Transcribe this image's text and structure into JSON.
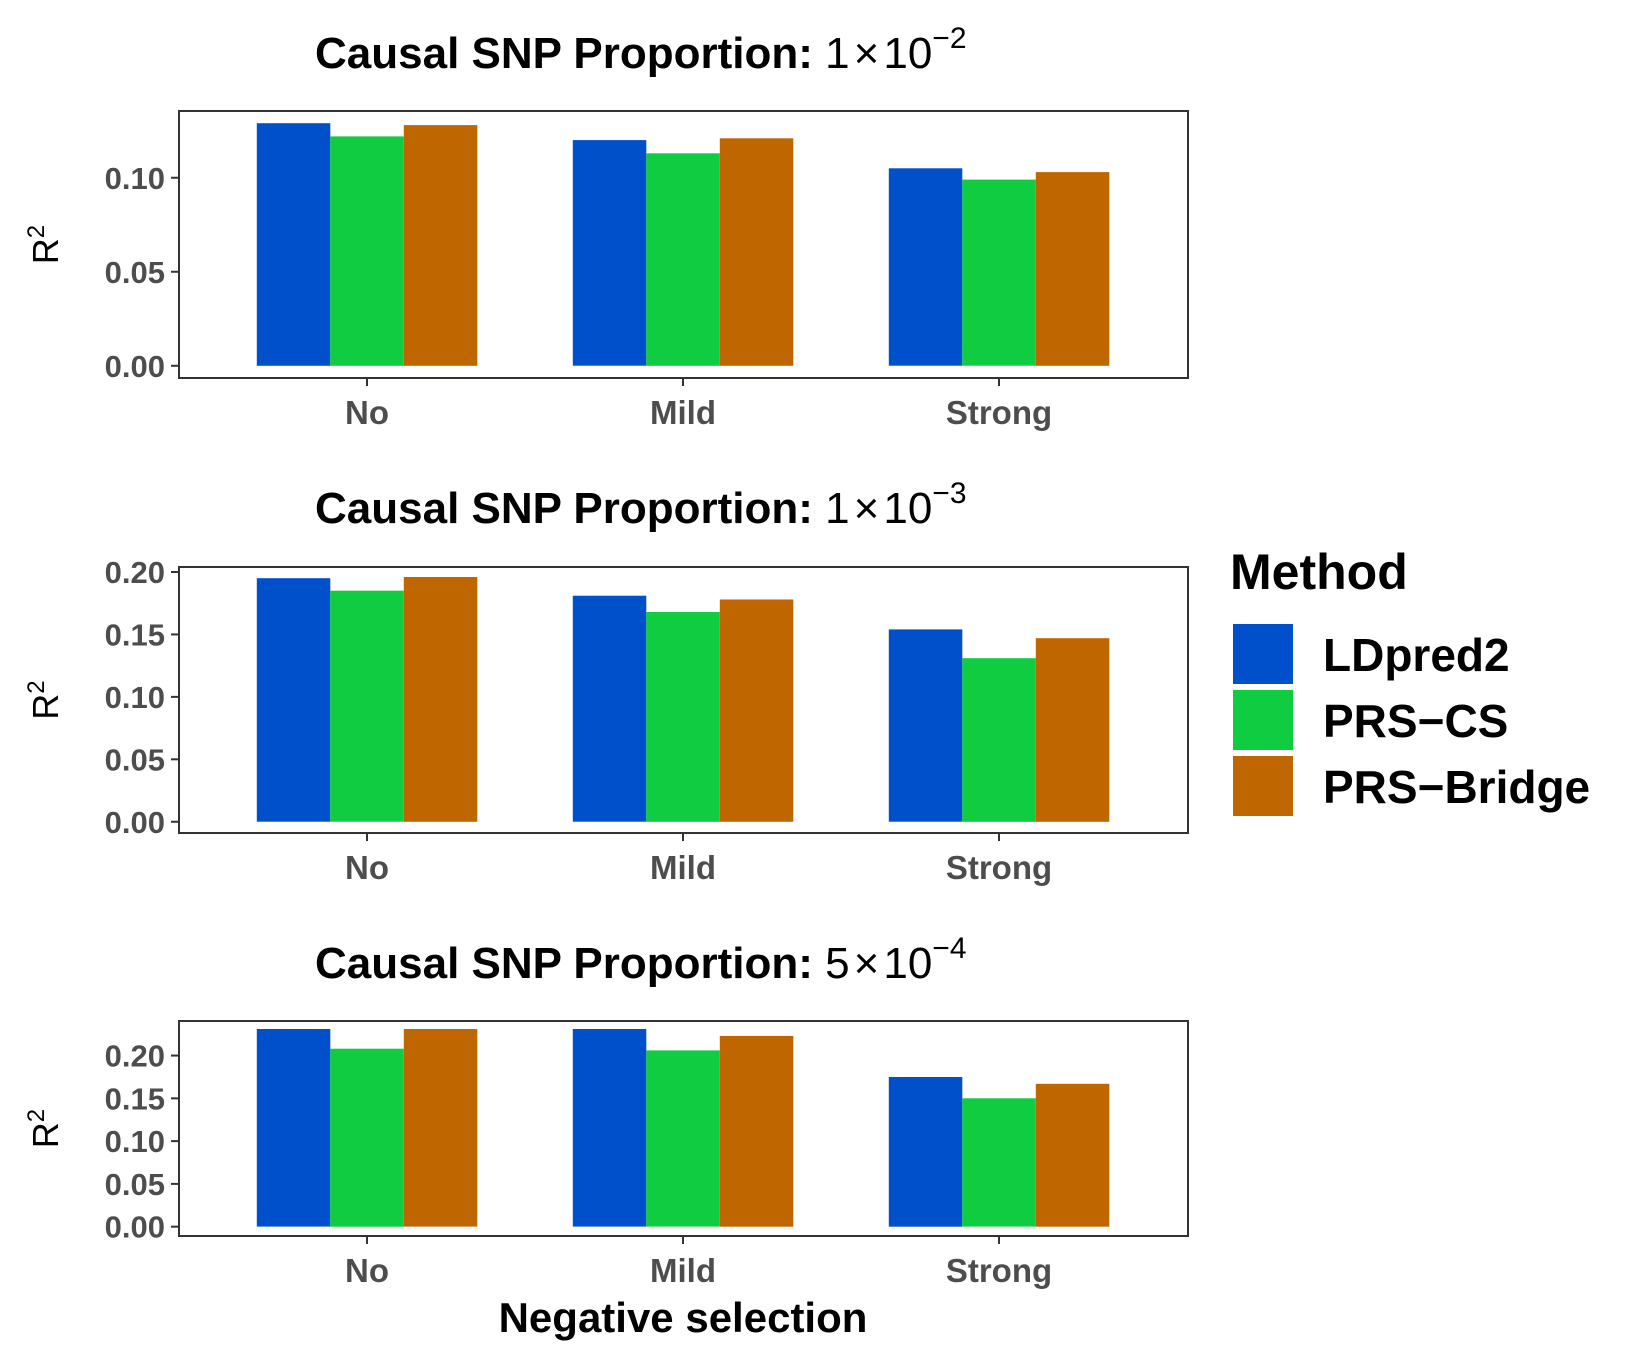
{
  "chart_data": [
    {
      "type": "bar",
      "title": "Causal SNP Proportion:",
      "title_value": {
        "mantissa": "1",
        "times": "×",
        "base": "10",
        "exponent": "−2"
      },
      "categories": [
        "No",
        "Mild",
        "Strong"
      ],
      "series": [
        {
          "name": "LDpred2",
          "values": [
            0.129,
            0.12,
            0.105
          ]
        },
        {
          "name": "PRS-CS",
          "values": [
            0.122,
            0.113,
            0.099
          ]
        },
        {
          "name": "PRS-Bridge",
          "values": [
            0.128,
            0.121,
            0.103
          ]
        }
      ],
      "ylabel": {
        "base": "R",
        "sup": "2"
      },
      "yticks": [
        0.0,
        0.05,
        0.1
      ],
      "ytick_labels": [
        "0.00",
        "0.05",
        "0.10"
      ],
      "ylim": [
        -0.0065,
        0.1355
      ]
    },
    {
      "type": "bar",
      "title": "Causal SNP Proportion:",
      "title_value": {
        "mantissa": "1",
        "times": "×",
        "base": "10",
        "exponent": "−3"
      },
      "categories": [
        "No",
        "Mild",
        "Strong"
      ],
      "series": [
        {
          "name": "LDpred2",
          "values": [
            0.195,
            0.181,
            0.154
          ]
        },
        {
          "name": "PRS-CS",
          "values": [
            0.185,
            0.168,
            0.131
          ]
        },
        {
          "name": "PRS-Bridge",
          "values": [
            0.196,
            0.178,
            0.147
          ]
        }
      ],
      "ylabel": {
        "base": "R",
        "sup": "2"
      },
      "yticks": [
        0.0,
        0.05,
        0.1,
        0.15,
        0.2
      ],
      "ytick_labels": [
        "0.00",
        "0.05",
        "0.10",
        "0.15",
        "0.20"
      ],
      "ylim": [
        -0.009,
        0.204
      ]
    },
    {
      "type": "bar",
      "title": "Causal SNP Proportion:",
      "title_value": {
        "mantissa": "5",
        "times": "×",
        "base": "10",
        "exponent": "−4"
      },
      "categories": [
        "No",
        "Mild",
        "Strong"
      ],
      "series": [
        {
          "name": "LDpred2",
          "values": [
            0.231,
            0.231,
            0.175
          ]
        },
        {
          "name": "PRS-CS",
          "values": [
            0.208,
            0.206,
            0.15
          ]
        },
        {
          "name": "PRS-Bridge",
          "values": [
            0.231,
            0.223,
            0.167
          ]
        }
      ],
      "ylabel": {
        "base": "R",
        "sup": "2"
      },
      "yticks": [
        0.0,
        0.05,
        0.1,
        0.15,
        0.2
      ],
      "ytick_labels": [
        "0.00",
        "0.05",
        "0.10",
        "0.15",
        "0.20"
      ],
      "ylim": [
        -0.0109,
        0.2404
      ]
    }
  ],
  "xlabel": "Negative selection",
  "legend": {
    "title": "Method",
    "position": "right",
    "entries": [
      {
        "name": "LDpred2",
        "color": "#0050cc"
      },
      {
        "name": "PRS−CS",
        "color": "#0fcc41"
      },
      {
        "name": "PRS−Bridge",
        "color": "#c06600"
      }
    ]
  },
  "colors": {
    "panel_border": "#333333",
    "tick_text": "#4d4d4d"
  }
}
